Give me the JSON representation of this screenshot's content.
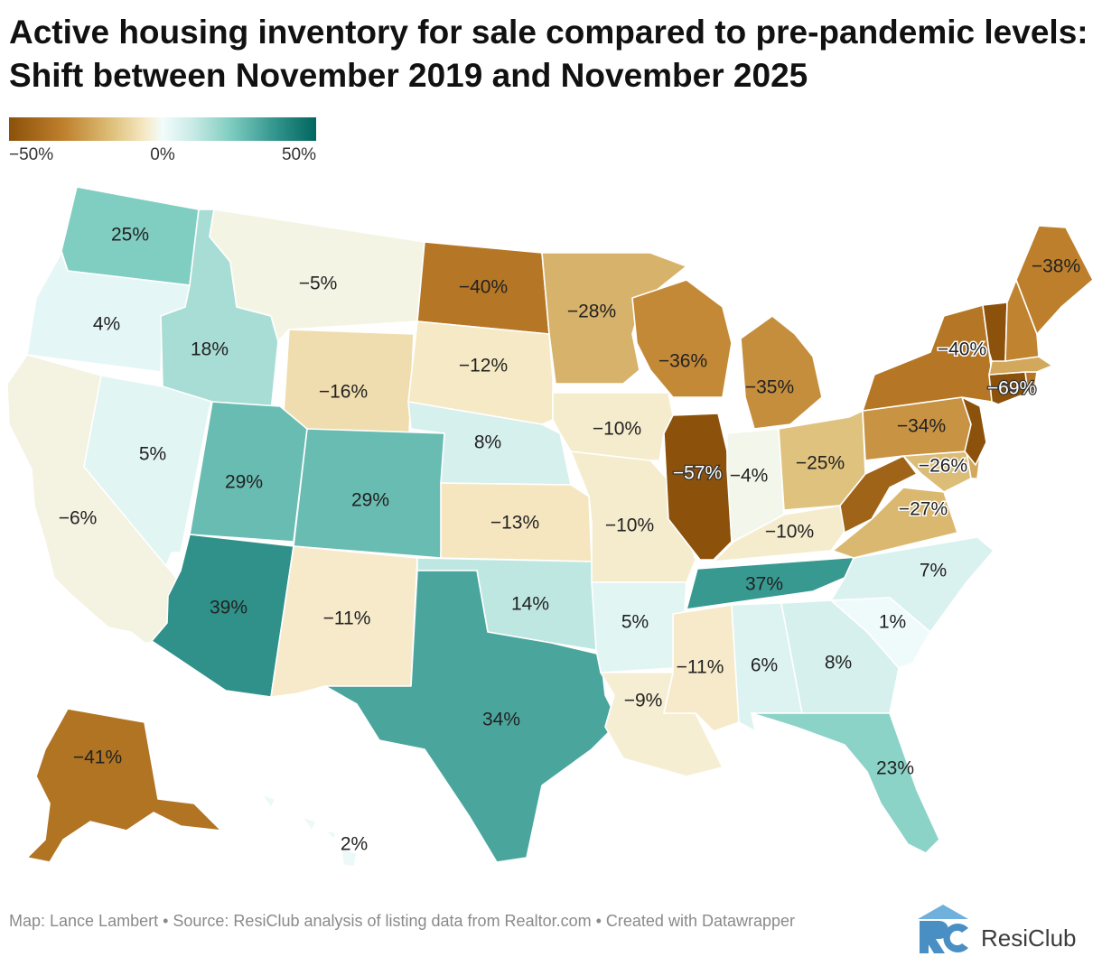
{
  "title": "Active housing inventory for sale compared to pre-pandemic levels: Shift between November 2019 and November 2025",
  "legend": {
    "ticks": [
      "−50%",
      "0%",
      "50%"
    ],
    "range": [
      -50,
      50
    ],
    "colors": [
      "#8c510a",
      "#bf812d",
      "#dfc27d",
      "#f6e8c3",
      "#f2fcfc",
      "#c7eae5",
      "#80cdc1",
      "#35978f",
      "#01665e"
    ]
  },
  "states": [
    {
      "name": "Washington",
      "label": "25%",
      "value": 25
    },
    {
      "name": "Oregon",
      "label": "4%",
      "value": 4
    },
    {
      "name": "California",
      "label": "−6%",
      "value": -6
    },
    {
      "name": "Nevada",
      "label": "5%",
      "value": 5
    },
    {
      "name": "Idaho",
      "label": "18%",
      "value": 18
    },
    {
      "name": "Montana",
      "label": "−5%",
      "value": -5
    },
    {
      "name": "Wyoming",
      "label": "−16%",
      "value": -16
    },
    {
      "name": "Utah",
      "label": "29%",
      "value": 29
    },
    {
      "name": "Arizona",
      "label": "39%",
      "value": 39
    },
    {
      "name": "Colorado",
      "label": "29%",
      "value": 29
    },
    {
      "name": "New Mexico",
      "label": "−11%",
      "value": -11
    },
    {
      "name": "North Dakota",
      "label": "−40%",
      "value": -40
    },
    {
      "name": "South Dakota",
      "label": "−12%",
      "value": -12
    },
    {
      "name": "Nebraska",
      "label": "8%",
      "value": 8
    },
    {
      "name": "Kansas",
      "label": "−13%",
      "value": -13
    },
    {
      "name": "Oklahoma",
      "label": "14%",
      "value": 14
    },
    {
      "name": "Texas",
      "label": "34%",
      "value": 34
    },
    {
      "name": "Minnesota",
      "label": "−28%",
      "value": -28
    },
    {
      "name": "Iowa",
      "label": "−10%",
      "value": -10
    },
    {
      "name": "Missouri",
      "label": "−10%",
      "value": -10
    },
    {
      "name": "Arkansas",
      "label": "5%",
      "value": 5
    },
    {
      "name": "Louisiana",
      "label": "−9%",
      "value": -9
    },
    {
      "name": "Wisconsin",
      "label": "−36%",
      "value": -36
    },
    {
      "name": "Illinois",
      "label": "−57%",
      "value": -57
    },
    {
      "name": "Michigan",
      "label": "−35%",
      "value": -35
    },
    {
      "name": "Indiana",
      "label": "−4%",
      "value": -4
    },
    {
      "name": "Ohio",
      "label": "−25%",
      "value": -25
    },
    {
      "name": "Kentucky",
      "label": "−10%",
      "value": -10
    },
    {
      "name": "Tennessee",
      "label": "37%",
      "value": 37
    },
    {
      "name": "Mississippi",
      "label": "−11%",
      "value": -11
    },
    {
      "name": "Alabama",
      "label": "6%",
      "value": 6
    },
    {
      "name": "Georgia",
      "label": "8%",
      "value": 8
    },
    {
      "name": "Florida",
      "label": "23%",
      "value": 23
    },
    {
      "name": "South Carolina",
      "label": "1%",
      "value": 1
    },
    {
      "name": "North Carolina",
      "label": "7%",
      "value": 7
    },
    {
      "name": "Virginia",
      "label": "−27%",
      "value": -27
    },
    {
      "name": "West Virginia",
      "label": "",
      "value": -45
    },
    {
      "name": "Maryland",
      "label": "−26%",
      "value": -26
    },
    {
      "name": "Delaware",
      "label": "",
      "value": -30
    },
    {
      "name": "Pennsylvania",
      "label": "−34%",
      "value": -34
    },
    {
      "name": "New Jersey",
      "label": "",
      "value": -60
    },
    {
      "name": "New York",
      "label": "−40%",
      "value": -40
    },
    {
      "name": "Connecticut",
      "label": "−69%",
      "value": -69
    },
    {
      "name": "Rhode Island",
      "label": "",
      "value": -40
    },
    {
      "name": "Massachusetts",
      "label": "",
      "value": -30
    },
    {
      "name": "Vermont",
      "label": "",
      "value": -55
    },
    {
      "name": "New Hampshire",
      "label": "",
      "value": -37
    },
    {
      "name": "Maine",
      "label": "−38%",
      "value": -38
    },
    {
      "name": "Alaska",
      "label": "−41%",
      "value": -41
    },
    {
      "name": "Hawaii",
      "label": "2%",
      "value": 2
    }
  ],
  "footer": "Map: Lance Lambert • Source: ResiClub analysis of listing data from Realtor.com • Created with Datawrapper",
  "brand": {
    "name": "ResiClub",
    "logo_letters": "RC",
    "logo_color": "#4a8fc4"
  }
}
